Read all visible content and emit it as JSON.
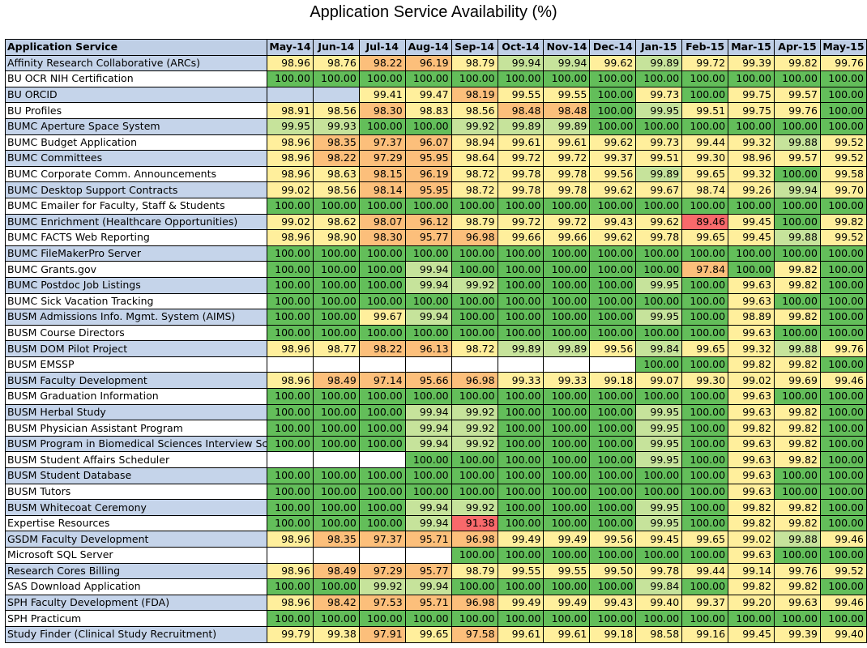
{
  "chart_data": {
    "type": "heatmap",
    "title": "Application Service Availability (%)",
    "row_header": "Application Service",
    "columns": [
      "May-14",
      "Jun-14",
      "Jul-14",
      "Aug-14",
      "Sep-14",
      "Oct-14",
      "Nov-14",
      "Dec-14",
      "Jan-15",
      "Feb-15",
      "Mar-15",
      "Apr-15",
      "May-15"
    ],
    "rows": [
      {
        "name": "Affinity Research Collaborative (ARCs)",
        "values": [
          98.96,
          98.76,
          98.22,
          96.19,
          98.79,
          99.94,
          99.94,
          99.62,
          99.89,
          99.72,
          99.39,
          99.82,
          99.76
        ]
      },
      {
        "name": "BU OCR NIH Certification",
        "values": [
          100.0,
          100.0,
          100.0,
          100.0,
          100.0,
          100.0,
          100.0,
          100.0,
          100.0,
          100.0,
          100.0,
          100.0,
          100.0
        ]
      },
      {
        "name": "BU ORCID",
        "values": [
          null,
          null,
          99.41,
          99.47,
          98.19,
          99.55,
          99.55,
          100.0,
          99.73,
          100.0,
          99.75,
          99.57,
          100.0
        ]
      },
      {
        "name": "BU Profiles",
        "values": [
          98.91,
          98.56,
          98.3,
          98.83,
          98.56,
          98.48,
          98.48,
          100.0,
          99.95,
          99.51,
          99.75,
          99.76,
          100.0
        ]
      },
      {
        "name": "BUMC Aperture Space System",
        "values": [
          99.95,
          99.93,
          100.0,
          100.0,
          99.92,
          99.89,
          99.89,
          100.0,
          100.0,
          100.0,
          100.0,
          100.0,
          100.0
        ]
      },
      {
        "name": "BUMC Budget Application",
        "values": [
          98.96,
          98.35,
          97.37,
          96.07,
          98.94,
          99.61,
          99.61,
          99.62,
          99.73,
          99.44,
          99.32,
          99.88,
          99.52
        ]
      },
      {
        "name": "BUMC Committees",
        "values": [
          98.96,
          98.22,
          97.29,
          95.95,
          98.64,
          99.72,
          99.72,
          99.37,
          99.51,
          99.3,
          98.96,
          99.57,
          99.52
        ]
      },
      {
        "name": "BUMC Corporate Comm. Announcements",
        "values": [
          98.96,
          98.63,
          98.15,
          96.19,
          98.72,
          99.78,
          99.78,
          99.56,
          99.89,
          99.65,
          99.32,
          100.0,
          99.58
        ]
      },
      {
        "name": "BUMC Desktop Support Contracts",
        "values": [
          99.02,
          98.56,
          98.14,
          95.95,
          98.72,
          99.78,
          99.78,
          99.62,
          99.67,
          98.74,
          99.26,
          99.94,
          99.7
        ]
      },
      {
        "name": "BUMC Emailer for Faculty, Staff & Students",
        "values": [
          100.0,
          100.0,
          100.0,
          100.0,
          100.0,
          100.0,
          100.0,
          100.0,
          100.0,
          100.0,
          100.0,
          100.0,
          100.0
        ]
      },
      {
        "name": "BUMC Enrichment (Healthcare Opportunities)",
        "values": [
          99.02,
          98.62,
          98.07,
          96.12,
          98.79,
          99.72,
          99.72,
          99.43,
          99.62,
          89.46,
          99.45,
          100.0,
          99.82
        ]
      },
      {
        "name": "BUMC FACTS Web Reporting",
        "values": [
          98.96,
          98.9,
          98.3,
          95.77,
          96.98,
          99.66,
          99.66,
          99.62,
          99.78,
          99.65,
          99.45,
          99.88,
          99.52
        ]
      },
      {
        "name": "BUMC FileMakerPro Server",
        "values": [
          100.0,
          100.0,
          100.0,
          100.0,
          100.0,
          100.0,
          100.0,
          100.0,
          100.0,
          100.0,
          100.0,
          100.0,
          100.0
        ]
      },
      {
        "name": "BUMC Grants.gov",
        "values": [
          100.0,
          100.0,
          100.0,
          99.94,
          100.0,
          100.0,
          100.0,
          100.0,
          100.0,
          97.84,
          100.0,
          99.82,
          100.0
        ]
      },
      {
        "name": "BUMC Postdoc Job Listings",
        "values": [
          100.0,
          100.0,
          100.0,
          99.94,
          99.92,
          100.0,
          100.0,
          100.0,
          99.95,
          100.0,
          99.63,
          99.82,
          100.0
        ]
      },
      {
        "name": "BUMC Sick Vacation Tracking",
        "values": [
          100.0,
          100.0,
          100.0,
          100.0,
          100.0,
          100.0,
          100.0,
          100.0,
          100.0,
          100.0,
          99.63,
          100.0,
          100.0
        ]
      },
      {
        "name": "BUSM Admissions Info. Mgmt. System (AIMS)",
        "values": [
          100.0,
          100.0,
          99.67,
          99.94,
          100.0,
          100.0,
          100.0,
          100.0,
          99.95,
          100.0,
          98.89,
          99.82,
          100.0
        ]
      },
      {
        "name": "BUSM Course Directors",
        "values": [
          100.0,
          100.0,
          100.0,
          100.0,
          100.0,
          100.0,
          100.0,
          100.0,
          100.0,
          100.0,
          99.63,
          100.0,
          100.0
        ]
      },
      {
        "name": "BUSM DOM Pilot Project",
        "values": [
          98.96,
          98.77,
          98.22,
          96.13,
          98.72,
          99.89,
          99.89,
          99.56,
          99.84,
          99.65,
          99.32,
          99.88,
          99.76
        ]
      },
      {
        "name": "BUSM EMSSP",
        "values": [
          null,
          null,
          null,
          null,
          null,
          null,
          null,
          null,
          100.0,
          100.0,
          99.82,
          99.82,
          100.0
        ]
      },
      {
        "name": "BUSM Faculty Development",
        "values": [
          98.96,
          98.49,
          97.14,
          95.66,
          96.98,
          99.33,
          99.33,
          99.18,
          99.07,
          99.3,
          99.02,
          99.69,
          99.46
        ]
      },
      {
        "name": "BUSM Graduation Information",
        "values": [
          100.0,
          100.0,
          100.0,
          100.0,
          100.0,
          100.0,
          100.0,
          100.0,
          100.0,
          100.0,
          99.63,
          100.0,
          100.0
        ]
      },
      {
        "name": "BUSM Herbal Study",
        "values": [
          100.0,
          100.0,
          100.0,
          99.94,
          99.92,
          100.0,
          100.0,
          100.0,
          99.95,
          100.0,
          99.63,
          99.82,
          100.0
        ]
      },
      {
        "name": "BUSM Physician Assistant Program",
        "values": [
          100.0,
          100.0,
          100.0,
          99.94,
          99.92,
          100.0,
          100.0,
          100.0,
          99.95,
          100.0,
          99.82,
          99.82,
          100.0
        ]
      },
      {
        "name": "BUSM Program in Biomedical Sciences Interview Sch",
        "values": [
          100.0,
          100.0,
          100.0,
          99.94,
          99.92,
          100.0,
          100.0,
          100.0,
          99.95,
          100.0,
          99.63,
          99.82,
          100.0
        ]
      },
      {
        "name": "BUSM Student Affairs Scheduler",
        "values": [
          null,
          null,
          null,
          100.0,
          100.0,
          100.0,
          100.0,
          100.0,
          99.95,
          100.0,
          99.63,
          99.82,
          100.0
        ]
      },
      {
        "name": "BUSM Student Database",
        "values": [
          100.0,
          100.0,
          100.0,
          100.0,
          100.0,
          100.0,
          100.0,
          100.0,
          100.0,
          100.0,
          99.63,
          100.0,
          100.0
        ]
      },
      {
        "name": "BUSM Tutors",
        "values": [
          100.0,
          100.0,
          100.0,
          100.0,
          100.0,
          100.0,
          100.0,
          100.0,
          100.0,
          100.0,
          99.63,
          100.0,
          100.0
        ]
      },
      {
        "name": "BUSM Whitecoat Ceremony",
        "values": [
          100.0,
          100.0,
          100.0,
          99.94,
          99.92,
          100.0,
          100.0,
          100.0,
          99.95,
          100.0,
          99.82,
          99.82,
          100.0
        ]
      },
      {
        "name": "Expertise Resources",
        "values": [
          100.0,
          100.0,
          100.0,
          99.94,
          91.38,
          100.0,
          100.0,
          100.0,
          99.95,
          100.0,
          99.82,
          99.82,
          100.0
        ]
      },
      {
        "name": "GSDM Faculty Development",
        "values": [
          98.96,
          98.35,
          97.37,
          95.71,
          96.98,
          99.49,
          99.49,
          99.56,
          99.45,
          99.65,
          99.02,
          99.88,
          99.46
        ]
      },
      {
        "name": "Microsoft SQL Server",
        "values": [
          null,
          null,
          null,
          null,
          100.0,
          100.0,
          100.0,
          100.0,
          100.0,
          100.0,
          99.63,
          100.0,
          100.0
        ]
      },
      {
        "name": "Research Cores Billing",
        "values": [
          98.96,
          98.49,
          97.29,
          95.77,
          98.79,
          99.55,
          99.55,
          99.5,
          99.78,
          99.44,
          99.14,
          99.76,
          99.52
        ]
      },
      {
        "name": "SAS Download Application",
        "values": [
          100.0,
          100.0,
          99.92,
          99.94,
          100.0,
          100.0,
          100.0,
          100.0,
          99.84,
          100.0,
          99.82,
          99.82,
          100.0
        ]
      },
      {
        "name": "SPH Faculty Development (FDA)",
        "values": [
          98.96,
          98.42,
          97.53,
          95.71,
          96.98,
          99.49,
          99.49,
          99.43,
          99.4,
          99.37,
          99.2,
          99.63,
          99.46
        ]
      },
      {
        "name": "SPH Practicum",
        "values": [
          100.0,
          100.0,
          100.0,
          100.0,
          100.0,
          100.0,
          100.0,
          100.0,
          100.0,
          100.0,
          100.0,
          100.0,
          100.0
        ]
      },
      {
        "name": "Study Finder (Clinical Study Recruitment)",
        "values": [
          99.79,
          99.38,
          97.91,
          99.65,
          97.58,
          99.61,
          99.61,
          99.18,
          98.58,
          99.16,
          99.45,
          99.39,
          99.4
        ]
      }
    ],
    "colors": {
      "header_bg": "#bfcfe6",
      "row_label_alt": "#c5d4ea",
      "row_label_bg": "#ffffff",
      "perfect": "#63be5a",
      "near_perfect": "#c6e39b",
      "high": "#ffef9c",
      "mid": "#fcbf7b",
      "low": "#f8696b"
    }
  }
}
